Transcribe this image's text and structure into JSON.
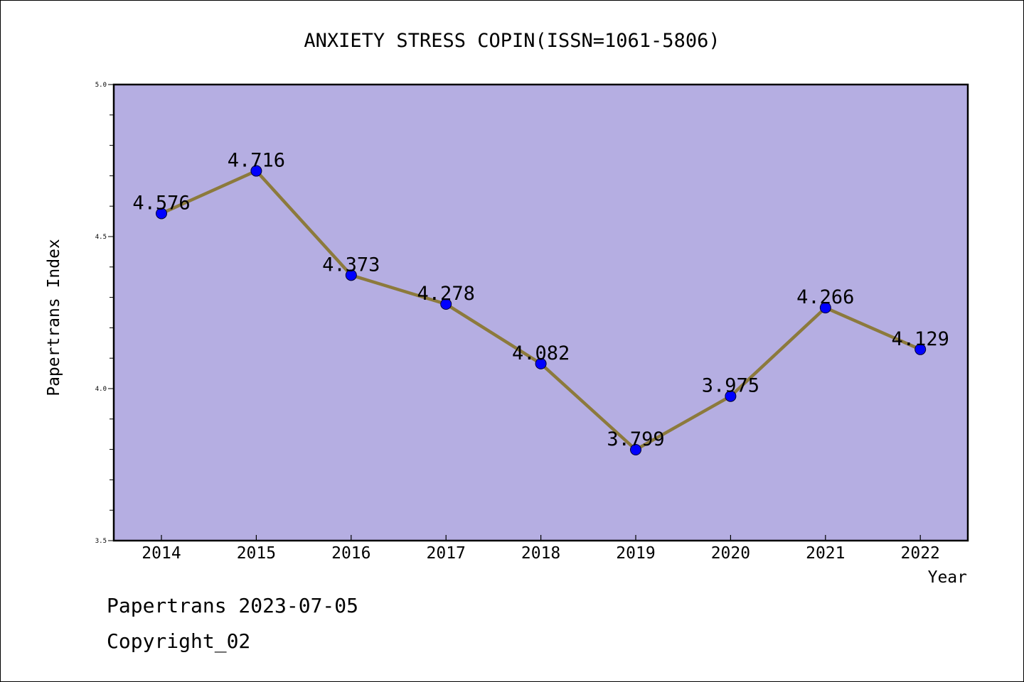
{
  "chart_data": {
    "type": "line",
    "title": "ANXIETY STRESS COPIN(ISSN=1061-5806)",
    "xlabel": "Year",
    "ylabel": "Papertrans Index",
    "categories": [
      "2014",
      "2015",
      "2016",
      "2017",
      "2018",
      "2019",
      "2020",
      "2021",
      "2022"
    ],
    "series": [
      {
        "values": [
          4.576,
          4.716,
          4.373,
          4.278,
          4.082,
          3.799,
          3.975,
          4.266,
          4.129
        ],
        "labels": [
          "4.576",
          "4.716",
          "4.373",
          "4.278",
          "4.082",
          "3.799",
          "3.975",
          "4.266",
          "4.129"
        ]
      }
    ],
    "ylim": [
      3.5,
      5.0
    ],
    "yticks": [
      "3.5",
      "4.0",
      "4.5",
      "5.0"
    ],
    "grid": false,
    "colors": {
      "plot_background": "#b5aee2",
      "line": "#8c7a3c",
      "marker": "#0000ff"
    }
  },
  "footer": {
    "date_text": "Papertrans 2023-07-05",
    "copyright": "Copyright_02"
  }
}
